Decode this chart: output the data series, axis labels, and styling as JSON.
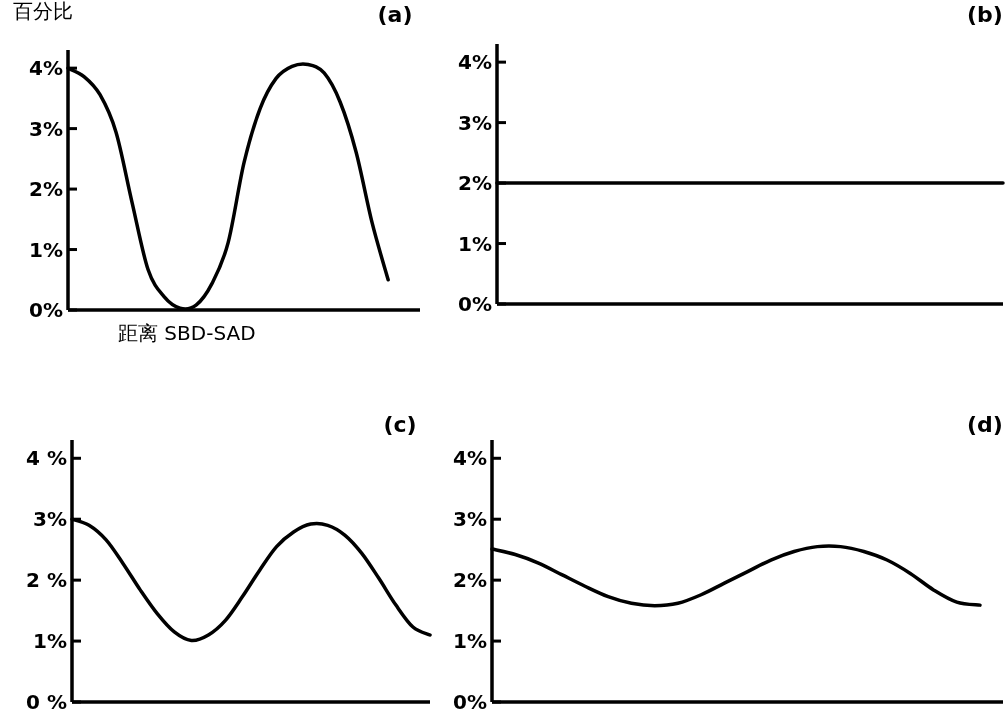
{
  "chart_data": [
    {
      "type": "line",
      "title": "(a)",
      "ylabel": "百分比",
      "xlabel": "距离 SBD-SAD",
      "color": "#000000",
      "categories": [
        null,
        null,
        null,
        null,
        null,
        null,
        null,
        null,
        null,
        null,
        null,
        null,
        null,
        null,
        null,
        null,
        null,
        null,
        null,
        null,
        null,
        null
      ],
      "values": [
        4.0,
        3.86,
        3.56,
        2.94,
        1.78,
        0.67,
        0.22,
        0.03,
        0.08,
        0.44,
        1.11,
        2.44,
        3.33,
        3.83,
        4.03,
        4.06,
        3.92,
        3.44,
        2.61,
        1.44,
        0.5,
        null
      ],
      "ylim": [
        0,
        4.3
      ],
      "yticks": [
        {
          "value": 0,
          "label": "0%"
        },
        {
          "value": 1,
          "label": "1%"
        },
        {
          "value": 2,
          "label": "2%"
        },
        {
          "value": 3,
          "label": "3%"
        },
        {
          "value": 4,
          "label": "4%"
        }
      ],
      "tick_labels": "y"
    },
    {
      "type": "line",
      "title": "(b)",
      "color": "#000000",
      "categories": [
        null,
        null,
        null,
        null,
        null,
        null,
        null,
        null,
        null,
        null,
        null,
        null,
        null,
        null,
        null,
        null,
        null,
        null,
        null,
        null,
        null,
        null
      ],
      "values": [
        2.0,
        2.0,
        2.0,
        2.0,
        2.0,
        2.0,
        2.0,
        2.0,
        2.0,
        2.0,
        2.0,
        2.0,
        2.0,
        2.0,
        2.0,
        2.0,
        2.0,
        2.0,
        2.0,
        2.0,
        2.0,
        2.0
      ],
      "ylim": [
        0,
        4.3
      ],
      "yticks": [
        {
          "value": 0,
          "label": "0%"
        },
        {
          "value": 1,
          "label": "1%"
        },
        {
          "value": 2,
          "label": "2%"
        },
        {
          "value": 3,
          "label": "3%"
        },
        {
          "value": 4,
          "label": "4%"
        }
      ],
      "tick_labels": "y"
    },
    {
      "type": "line",
      "title": "(c)",
      "color": "#000000",
      "categories": [
        null,
        null,
        null,
        null,
        null,
        null,
        null,
        null,
        null,
        null,
        null,
        null,
        null,
        null,
        null,
        null,
        null,
        null,
        null,
        null,
        null,
        null
      ],
      "values": [
        3.0,
        2.9,
        2.66,
        2.27,
        1.84,
        1.45,
        1.15,
        1.01,
        1.1,
        1.34,
        1.73,
        2.16,
        2.55,
        2.79,
        2.92,
        2.9,
        2.74,
        2.44,
        2.03,
        1.59,
        1.23,
        1.1
      ],
      "ylim": [
        0,
        4.3
      ],
      "yticks": [
        {
          "value": 0,
          "label": "0 %"
        },
        {
          "value": 1,
          "label": "1%"
        },
        {
          "value": 2,
          "label": "2 %"
        },
        {
          "value": 3,
          "label": "3%"
        },
        {
          "value": 4,
          "label": "4 %"
        }
      ],
      "tick_labels": "y"
    },
    {
      "type": "line",
      "title": "(d)",
      "color": "#000000",
      "categories": [
        null,
        null,
        null,
        null,
        null,
        null,
        null,
        null,
        null,
        null,
        null,
        null,
        null,
        null,
        null,
        null,
        null,
        null,
        null,
        null,
        null,
        null
      ],
      "values": [
        2.51,
        2.42,
        2.28,
        2.09,
        1.9,
        1.73,
        1.62,
        1.58,
        1.62,
        1.76,
        1.95,
        2.14,
        2.33,
        2.47,
        2.55,
        2.55,
        2.47,
        2.33,
        2.11,
        1.84,
        1.64,
        1.59
      ],
      "ylim": [
        0,
        4.3
      ],
      "yticks": [
        {
          "value": 0,
          "label": "0%"
        },
        {
          "value": 1,
          "label": "1%"
        },
        {
          "value": 2,
          "label": "2%"
        },
        {
          "value": 3,
          "label": "3%"
        },
        {
          "value": 4,
          "label": "4%"
        }
      ],
      "tick_labels": "y"
    }
  ]
}
